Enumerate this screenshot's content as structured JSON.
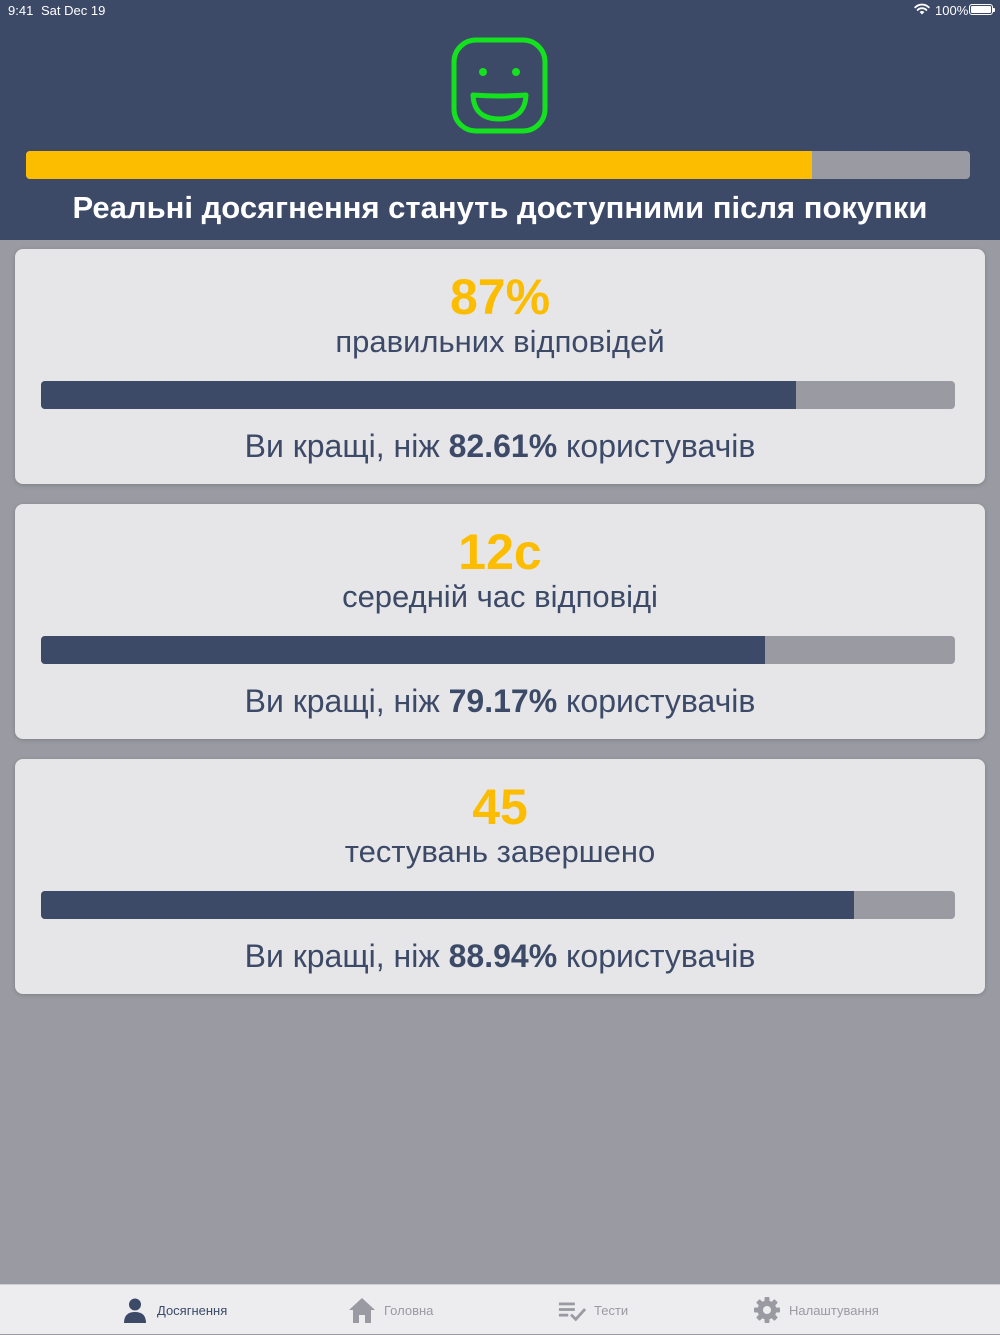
{
  "statusbar": {
    "time": "9:41",
    "date": "Sat Dec 19",
    "battery": "100%",
    "wifi_icon": "wifi-icon",
    "battery_icon": "battery-icon"
  },
  "header": {
    "icon": "smiley-face-icon",
    "progress": 0.833,
    "title": "Реальні досягнення стануть доступними після покупки"
  },
  "colors": {
    "navy": "#3c4a68",
    "yellow": "#fcbd00",
    "green": "#14e21e",
    "gray": "#9a9aa2",
    "card": "#e6e6e9"
  },
  "cards": [
    {
      "value": "87%",
      "label": "правильних відповідей",
      "progress": 0.8261,
      "compare_prefix": "Ви кращі, ніж",
      "compare_value": "82.61%",
      "compare_suffix": "користувачів"
    },
    {
      "value": "12с",
      "label": "середній час відповіді",
      "progress": 0.7917,
      "compare_prefix": "Ви кращі, ніж",
      "compare_value": "79.17%",
      "compare_suffix": "користувачів"
    },
    {
      "value": "45",
      "label": "тестувань завершено",
      "progress": 0.8894,
      "compare_prefix": "Ви кращі, ніж",
      "compare_value": "88.94%",
      "compare_suffix": "користувачів"
    }
  ],
  "tabbar": {
    "items": [
      {
        "label": "Досягнення",
        "icon": "person-icon",
        "active": true
      },
      {
        "label": "Головна",
        "icon": "home-icon",
        "active": false
      },
      {
        "label": "Тести",
        "icon": "checklist-icon",
        "active": false
      },
      {
        "label": "Налаштування",
        "icon": "gear-icon",
        "active": false
      }
    ]
  }
}
